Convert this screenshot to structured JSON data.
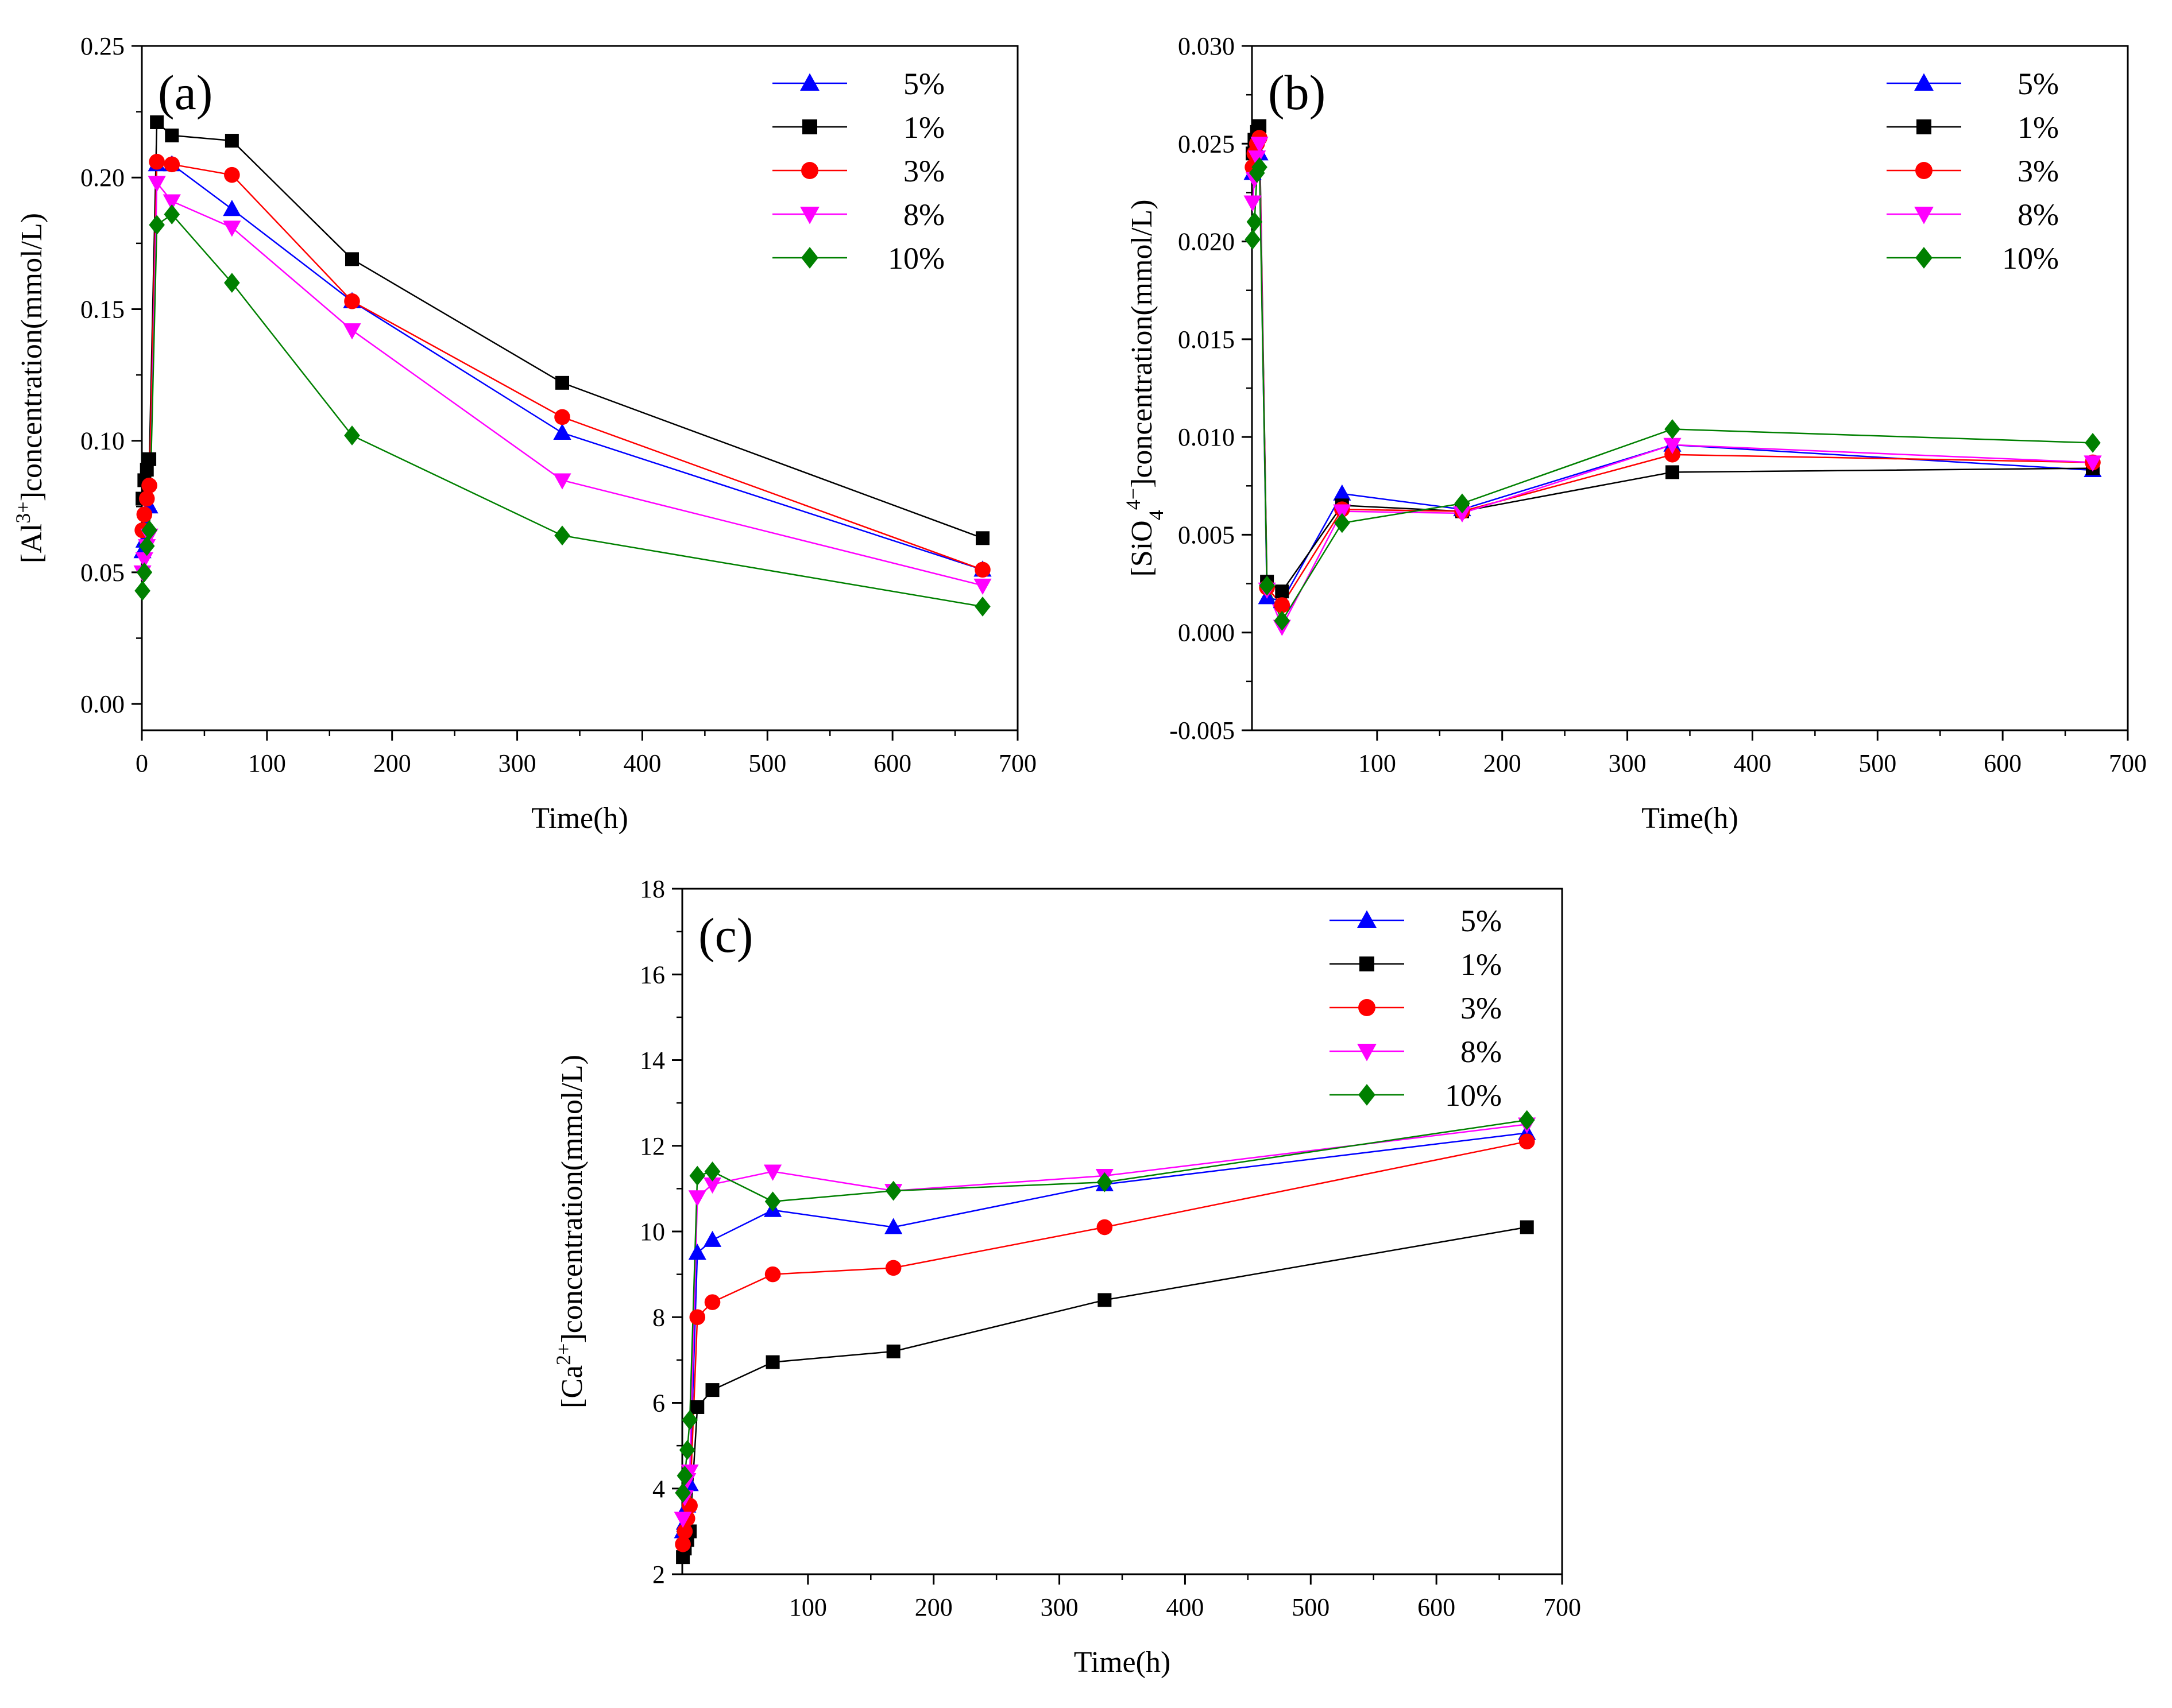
{
  "figure": {
    "background": "#ffffff"
  },
  "series_styles": {
    "5%": {
      "color": "#0000ff",
      "marker": "triangle-up"
    },
    "1%": {
      "color": "#000000",
      "marker": "square"
    },
    "3%": {
      "color": "#ff0000",
      "marker": "circle"
    },
    "8%": {
      "color": "#ff00ff",
      "marker": "triangle-down"
    },
    "10%": {
      "color": "#008000",
      "marker": "diamond"
    }
  },
  "chart_data": [
    {
      "id": "a",
      "panel_label": "(a)",
      "type": "line",
      "xlabel": "Time(h)",
      "ylabel_parts": [
        [
          "[Al",
          ""
        ],
        [
          "3+",
          "sup"
        ],
        [
          "]concentration(mmol/L)",
          ""
        ]
      ],
      "xlim": [
        0,
        700
      ],
      "ylim": [
        -0.01,
        0.25
      ],
      "xticks": [
        0,
        100,
        200,
        300,
        400,
        500,
        600,
        700
      ],
      "yticks": [
        0,
        0.05,
        0.1,
        0.15,
        0.2,
        0.25
      ],
      "ytick_labels": [
        "0.00",
        "0.05",
        "0.10",
        "0.15",
        "0.20",
        "0.25"
      ],
      "legend_position": "top-right",
      "x": [
        0.5,
        2,
        4,
        6,
        12,
        24,
        72,
        168,
        336,
        672
      ],
      "series": [
        {
          "name": "5%",
          "values": [
            0.058,
            0.062,
            0.068,
            0.075,
            0.205,
            0.205,
            0.188,
            0.153,
            0.103,
            0.051
          ]
        },
        {
          "name": "1%",
          "values": [
            0.078,
            0.085,
            0.089,
            0.093,
            0.221,
            0.216,
            0.214,
            0.169,
            0.122,
            0.063
          ]
        },
        {
          "name": "3%",
          "values": [
            0.066,
            0.072,
            0.078,
            0.083,
            0.206,
            0.205,
            0.201,
            0.153,
            0.109,
            0.051
          ]
        },
        {
          "name": "8%",
          "values": [
            0.05,
            0.055,
            0.06,
            0.064,
            0.198,
            0.191,
            0.181,
            0.142,
            0.085,
            0.045
          ]
        },
        {
          "name": "10%",
          "values": [
            0.043,
            0.05,
            0.06,
            0.066,
            0.182,
            0.186,
            0.16,
            0.102,
            0.064,
            0.037
          ]
        }
      ]
    },
    {
      "id": "b",
      "panel_label": "(b)",
      "type": "line",
      "xlabel": "Time(h)",
      "ylabel_parts": [
        [
          "[SiO",
          ""
        ],
        [
          "4",
          "sub"
        ],
        [
          "4−",
          "sup"
        ],
        [
          "]concentration(mmol/L)",
          ""
        ]
      ],
      "xlim": [
        0,
        700
      ],
      "ylim": [
        -0.005,
        0.03
      ],
      "xticks": [
        100,
        200,
        300,
        400,
        500,
        600,
        700
      ],
      "yticks": [
        -0.005,
        0,
        0.005,
        0.01,
        0.015,
        0.02,
        0.025,
        0.03
      ],
      "ytick_labels": [
        "-0.005",
        "0.000",
        "0.005",
        "0.010",
        "0.015",
        "0.020",
        "0.025",
        "0.030"
      ],
      "legend_position": "top-right",
      "x": [
        0.5,
        2,
        4,
        6,
        12,
        24,
        72,
        168,
        336,
        672
      ],
      "series": [
        {
          "name": "5%",
          "values": [
            0.0235,
            0.0242,
            0.0246,
            0.0245,
            0.0018,
            0.0016,
            0.0071,
            0.0063,
            0.0096,
            0.0083
          ]
        },
        {
          "name": "1%",
          "values": [
            0.0245,
            0.0252,
            0.0256,
            0.0259,
            0.0026,
            0.0021,
            0.0065,
            0.0062,
            0.0082,
            0.0084
          ]
        },
        {
          "name": "3%",
          "values": [
            0.0238,
            0.0245,
            0.025,
            0.0253,
            0.0023,
            0.0014,
            0.0063,
            0.0062,
            0.0091,
            0.0087
          ]
        },
        {
          "name": "8%",
          "values": [
            0.022,
            0.0232,
            0.0243,
            0.025,
            0.0022,
            0.0003,
            0.0062,
            0.0061,
            0.0096,
            0.0087
          ]
        },
        {
          "name": "10%",
          "values": [
            0.0201,
            0.021,
            0.0235,
            0.0238,
            0.0024,
            0.0006,
            0.0056,
            0.0066,
            0.0104,
            0.0097
          ]
        }
      ]
    },
    {
      "id": "c",
      "panel_label": "(c)",
      "type": "line",
      "xlabel": "Time(h)",
      "ylabel_parts": [
        [
          "[Ca",
          ""
        ],
        [
          "2+",
          "sup"
        ],
        [
          "]concentration(mmol/L)",
          ""
        ]
      ],
      "xlim": [
        0,
        700
      ],
      "ylim": [
        2,
        18
      ],
      "xticks": [
        100,
        200,
        300,
        400,
        500,
        600,
        700
      ],
      "yticks": [
        2,
        4,
        6,
        8,
        10,
        12,
        14,
        16,
        18
      ],
      "ytick_labels": [
        "2",
        "4",
        "6",
        "8",
        "10",
        "12",
        "14",
        "16",
        "18"
      ],
      "legend_position": "top-right",
      "x": [
        0.5,
        2,
        4,
        6,
        12,
        24,
        72,
        168,
        336,
        672
      ],
      "series": [
        {
          "name": "5%",
          "values": [
            3.0,
            3.2,
            3.6,
            4.1,
            9.5,
            9.8,
            10.5,
            10.1,
            11.1,
            12.3
          ]
        },
        {
          "name": "1%",
          "values": [
            2.4,
            2.6,
            2.8,
            3.0,
            5.9,
            6.3,
            6.95,
            7.2,
            8.4,
            10.1
          ]
        },
        {
          "name": "3%",
          "values": [
            2.7,
            3.0,
            3.3,
            3.6,
            8.0,
            8.35,
            9.0,
            9.15,
            10.1,
            12.1
          ]
        },
        {
          "name": "8%",
          "values": [
            3.3,
            3.8,
            4.2,
            4.4,
            10.8,
            11.1,
            11.4,
            10.95,
            11.3,
            12.5
          ]
        },
        {
          "name": "10%",
          "values": [
            3.9,
            4.3,
            4.9,
            5.6,
            11.3,
            11.4,
            10.7,
            10.95,
            11.15,
            12.6
          ]
        }
      ]
    }
  ]
}
